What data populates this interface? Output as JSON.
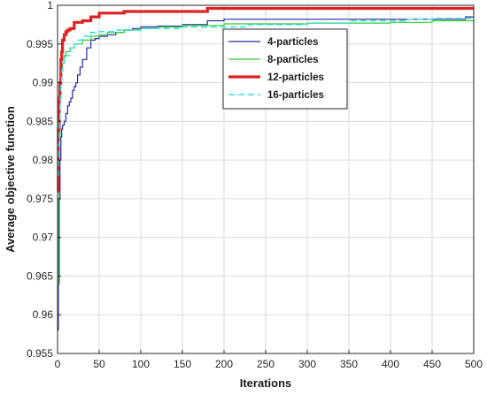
{
  "chart_data": {
    "type": "line",
    "title": "",
    "xlabel": "Iterations",
    "ylabel": "Average objective function",
    "xlim": [
      0,
      500
    ],
    "ylim": [
      0.955,
      1.0
    ],
    "xticks": [
      0,
      50,
      100,
      150,
      200,
      250,
      300,
      350,
      400,
      450,
      500
    ],
    "yticks": [
      0.955,
      0.96,
      0.965,
      0.97,
      0.975,
      0.98,
      0.985,
      0.99,
      0.995,
      1
    ],
    "xtick_labels": [
      "0",
      "50",
      "100",
      "150",
      "200",
      "250",
      "300",
      "350",
      "400",
      "450",
      "500"
    ],
    "ytick_labels": [
      "0.955",
      "0.96",
      "0.965",
      "0.97",
      "0.975",
      "0.98",
      "0.985",
      "0.99",
      "0.995",
      "1"
    ],
    "grid": true,
    "legend_position": "top-right",
    "series": [
      {
        "name": "4-particles",
        "color": "#1f2a9c",
        "style": "solid",
        "width": 1.2,
        "step": true,
        "x": [
          0,
          1,
          2,
          3,
          4,
          5,
          6,
          8,
          10,
          12,
          14,
          16,
          18,
          20,
          22,
          24,
          27,
          30,
          35,
          40,
          45,
          50,
          60,
          70,
          80,
          90,
          100,
          120,
          150,
          180,
          200,
          300,
          400,
          450,
          490,
          500
        ],
        "y": [
          0.958,
          0.964,
          0.975,
          0.98,
          0.983,
          0.984,
          0.9845,
          0.985,
          0.986,
          0.987,
          0.9875,
          0.988,
          0.989,
          0.9895,
          0.99,
          0.991,
          0.992,
          0.993,
          0.9945,
          0.9955,
          0.9957,
          0.996,
          0.9962,
          0.9965,
          0.9968,
          0.997,
          0.9972,
          0.9973,
          0.9975,
          0.998,
          0.9982,
          0.9982,
          0.9982,
          0.9982,
          0.9985,
          0.9985
        ]
      },
      {
        "name": "8-particles",
        "color": "#33cc33",
        "style": "solid",
        "width": 1.2,
        "step": true,
        "x": [
          0,
          1,
          2,
          3,
          4,
          5,
          6,
          8,
          10,
          15,
          20,
          30,
          40,
          50,
          60,
          80,
          100,
          120,
          150,
          200,
          300,
          400,
          450,
          500
        ],
        "y": [
          0.964,
          0.975,
          0.983,
          0.988,
          0.99,
          0.9915,
          0.9925,
          0.9935,
          0.994,
          0.9945,
          0.995,
          0.9955,
          0.996,
          0.9962,
          0.9965,
          0.9968,
          0.997,
          0.9972,
          0.9974,
          0.9976,
          0.9977,
          0.9978,
          0.998,
          0.998
        ]
      },
      {
        "name": "12-particles",
        "color": "#dd2222",
        "style": "solid",
        "width": 3.2,
        "step": true,
        "x": [
          0,
          1,
          2,
          3,
          4,
          5,
          6,
          8,
          10,
          12,
          15,
          20,
          30,
          40,
          50,
          80,
          180,
          500
        ],
        "y": [
          0.976,
          0.984,
          0.988,
          0.99,
          0.993,
          0.994,
          0.9955,
          0.9962,
          0.9966,
          0.9968,
          0.997,
          0.9978,
          0.998,
          0.9985,
          0.999,
          0.9992,
          0.9996,
          0.9996
        ]
      },
      {
        "name": "16-particles",
        "color": "#33dddd",
        "style": "dashed",
        "width": 1.5,
        "step": true,
        "x": [
          0,
          1,
          2,
          3,
          4,
          5,
          6,
          8,
          10,
          15,
          20,
          25,
          30,
          40,
          50,
          70,
          100,
          150,
          180,
          230,
          300,
          350,
          420,
          450,
          500
        ],
        "y": [
          0.978,
          0.982,
          0.985,
          0.988,
          0.99,
          0.9915,
          0.9925,
          0.993,
          0.9935,
          0.9945,
          0.995,
          0.9955,
          0.996,
          0.9965,
          0.9966,
          0.9968,
          0.997,
          0.9972,
          0.9972,
          0.9975,
          0.9977,
          0.998,
          0.9982,
          0.9983,
          0.9983
        ]
      }
    ]
  }
}
